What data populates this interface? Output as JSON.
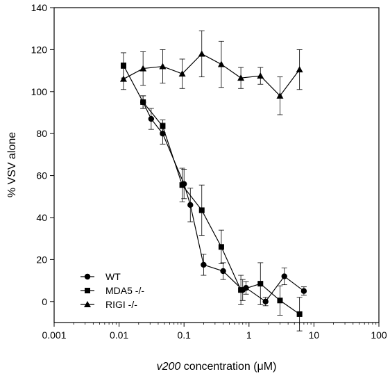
{
  "chart_data": {
    "type": "scatter",
    "xscale": "log",
    "xlim": [
      0.001,
      100
    ],
    "ylim": [
      -10,
      140
    ],
    "xlabel_prefix": "v200",
    "xlabel_rest": " concentration (",
    "xlabel_mu": "μ",
    "xlabel_suffix": "M)",
    "ylabel": "% VSV alone",
    "x_ticks": [
      {
        "value": 0.001,
        "label": "0.001"
      },
      {
        "value": 0.01,
        "label": "0.01"
      },
      {
        "value": 0.1,
        "label": "0.1"
      },
      {
        "value": 1,
        "label": "1"
      },
      {
        "value": 10,
        "label": "10"
      },
      {
        "value": 100,
        "label": "100"
      }
    ],
    "y_ticks": [
      {
        "value": 0,
        "label": "0"
      },
      {
        "value": 20,
        "label": "20"
      },
      {
        "value": 40,
        "label": "40"
      },
      {
        "value": 60,
        "label": "60"
      },
      {
        "value": 80,
        "label": "80"
      },
      {
        "value": 100,
        "label": "100"
      },
      {
        "value": 120,
        "label": "120"
      },
      {
        "value": 140,
        "label": "140"
      }
    ],
    "legend_position": "bottom-left",
    "series": [
      {
        "name": "WT",
        "marker": "circle",
        "points": [
          {
            "x": 0.0234,
            "y": 95,
            "err": 3
          },
          {
            "x": 0.0312,
            "y": 87,
            "err": 5
          },
          {
            "x": 0.0469,
            "y": 80,
            "err": 5
          },
          {
            "x": 0.1,
            "y": 56,
            "err": 7
          },
          {
            "x": 0.125,
            "y": 46,
            "err": 8
          },
          {
            "x": 0.2,
            "y": 17.5,
            "err": 5
          },
          {
            "x": 0.4,
            "y": 14.5,
            "err": 4
          },
          {
            "x": 0.8,
            "y": 5.5,
            "err": 5
          },
          {
            "x": 0.9,
            "y": 6.5,
            "err": 3
          },
          {
            "x": 1.8,
            "y": 0,
            "err": 2
          },
          {
            "x": 3.5,
            "y": 12,
            "err": 4
          },
          {
            "x": 7,
            "y": 5,
            "err": 2
          }
        ]
      },
      {
        "name": "MDA5 -/-",
        "marker": "square",
        "points": [
          {
            "x": 0.0117,
            "y": 112.5,
            "err": 6
          },
          {
            "x": 0.0234,
            "y": 95,
            "err": 3
          },
          {
            "x": 0.0469,
            "y": 83.5,
            "err": 3
          },
          {
            "x": 0.0938,
            "y": 55.5,
            "err": 8
          },
          {
            "x": 0.1875,
            "y": 43.5,
            "err": 12
          },
          {
            "x": 0.375,
            "y": 26,
            "err": 8
          },
          {
            "x": 0.75,
            "y": 5.5,
            "err": 7
          },
          {
            "x": 1.5,
            "y": 8.5,
            "err": 10
          },
          {
            "x": 3,
            "y": 0.5,
            "err": 7
          },
          {
            "x": 6,
            "y": -6,
            "err": 8
          }
        ]
      },
      {
        "name": "RIGI -/-",
        "marker": "triangle",
        "points": [
          {
            "x": 0.0117,
            "y": 106,
            "err": 5
          },
          {
            "x": 0.0234,
            "y": 111,
            "err": 8
          },
          {
            "x": 0.0469,
            "y": 112,
            "err": 8
          },
          {
            "x": 0.0938,
            "y": 108.5,
            "err": 7
          },
          {
            "x": 0.1875,
            "y": 118,
            "err": 11
          },
          {
            "x": 0.375,
            "y": 113,
            "err": 11
          },
          {
            "x": 0.75,
            "y": 106.5,
            "err": 5
          },
          {
            "x": 1.5,
            "y": 107.5,
            "err": 4
          },
          {
            "x": 3,
            "y": 98,
            "err": 9
          },
          {
            "x": 6,
            "y": 110.5,
            "err": 9.5
          }
        ]
      }
    ]
  }
}
